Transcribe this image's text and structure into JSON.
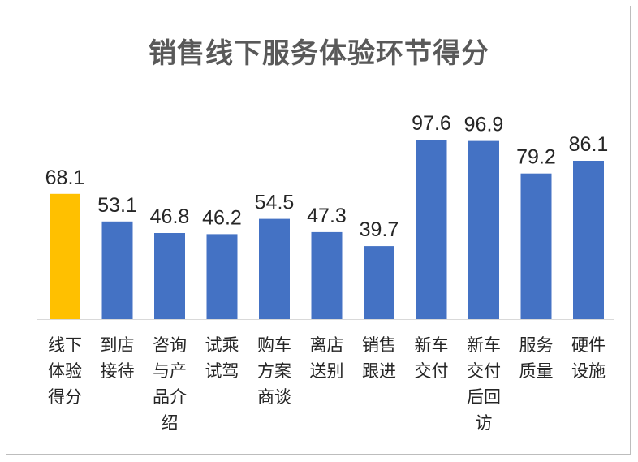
{
  "chart_data": {
    "type": "bar",
    "title": "销售线下服务体验环节得分",
    "categories": [
      [
        "线下",
        "体验",
        "得分"
      ],
      [
        "到店",
        "接待"
      ],
      [
        "咨询",
        "与产",
        "品介",
        "绍"
      ],
      [
        "试乘",
        "试驾"
      ],
      [
        "购车",
        "方案",
        "商谈"
      ],
      [
        "离店",
        "送别"
      ],
      [
        "销售",
        "跟进"
      ],
      [
        "新车",
        "交付"
      ],
      [
        "新车",
        "交付",
        "后回",
        "访"
      ],
      [
        "服务",
        "质量"
      ],
      [
        "硬件",
        "设施"
      ]
    ],
    "values": [
      68.1,
      53.1,
      46.8,
      46.2,
      54.5,
      47.3,
      39.7,
      97.6,
      96.9,
      79.2,
      86.1
    ],
    "value_labels": [
      "68.1",
      "53.1",
      "46.8",
      "46.2",
      "54.5",
      "47.3",
      "39.7",
      "97.6",
      "96.9",
      "79.2",
      "86.1"
    ],
    "colors": [
      "#FFC000",
      "#4472C4",
      "#4472C4",
      "#4472C4",
      "#4472C4",
      "#4472C4",
      "#4472C4",
      "#4472C4",
      "#4472C4",
      "#4472C4",
      "#4472C4"
    ],
    "axis_color": "#d9d9d9",
    "grid": false,
    "legend": "none"
  }
}
